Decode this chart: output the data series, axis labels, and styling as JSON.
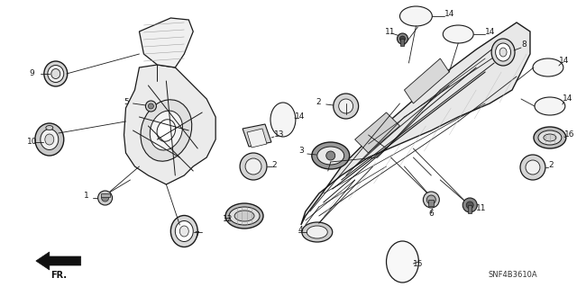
{
  "background_color": "#ffffff",
  "line_color": "#1a1a1a",
  "part_code": "SNF4B3610A",
  "figsize": [
    6.4,
    3.19
  ],
  "dpi": 100
}
